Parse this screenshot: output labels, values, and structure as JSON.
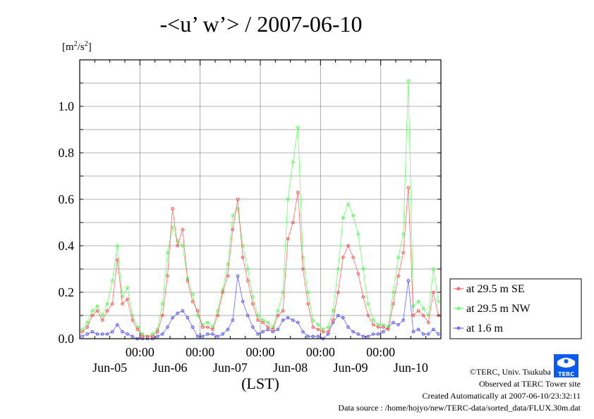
{
  "chart_data": {
    "type": "line",
    "title": "-<u’ w’> / 2007-06-10",
    "ylabel": "[m2/s2]",
    "ylabel_base": "[m",
    "ylabel_sup1": "2",
    "ylabel_mid": "/s",
    "ylabel_sup2": "2",
    "ylabel_end": "]",
    "xlabel": "(LST)",
    "ylim": [
      0,
      1.2
    ],
    "xlim_hours": [
      0,
      144
    ],
    "yticks": [
      "0.0",
      "0.2",
      "0.4",
      "0.6",
      "0.8",
      "1.0"
    ],
    "ytick_values": [
      0,
      0.2,
      0.4,
      0.6,
      0.8,
      1.0
    ],
    "xtick_labels": [
      "00:00",
      "00:00",
      "00:00",
      "00:00",
      "00:00"
    ],
    "xtick_hours": [
      24,
      48,
      72,
      96,
      120
    ],
    "day_labels": [
      "Jun-05",
      "Jun-06",
      "Jun-07",
      "Jun-08",
      "Jun-09",
      "Jun-10"
    ],
    "grid": true,
    "legend_position": "right",
    "x_hours": [
      1,
      3,
      5,
      7,
      9,
      11,
      13,
      15,
      17,
      19,
      21,
      23,
      25,
      27,
      29,
      31,
      33,
      35,
      37,
      39,
      41,
      43,
      45,
      47,
      49,
      51,
      53,
      55,
      57,
      59,
      61,
      63,
      65,
      67,
      69,
      71,
      73,
      75,
      77,
      79,
      81,
      83,
      85,
      87,
      89,
      91,
      93,
      95,
      97,
      99,
      101,
      103,
      105,
      107,
      109,
      111,
      113,
      115,
      117,
      119,
      121,
      123,
      125,
      127,
      129,
      131,
      133,
      135,
      137,
      139,
      141,
      143
    ],
    "series": [
      {
        "name": "at 29.5 m SE",
        "color": "#ff4040",
        "values": [
          0.03,
          0.05,
          0.1,
          0.12,
          0.08,
          0.12,
          0.15,
          0.34,
          0.15,
          0.17,
          0.08,
          0.04,
          0.01,
          0.01,
          0.01,
          0.03,
          0.1,
          0.27,
          0.56,
          0.4,
          0.47,
          0.25,
          0.16,
          0.12,
          0.05,
          0.05,
          0.04,
          0.1,
          0.2,
          0.27,
          0.47,
          0.6,
          0.35,
          0.25,
          0.15,
          0.08,
          0.07,
          0.05,
          0.04,
          0.1,
          0.12,
          0.43,
          0.5,
          0.63,
          0.3,
          0.15,
          0.05,
          0.04,
          0.03,
          0.03,
          0.08,
          0.2,
          0.35,
          0.4,
          0.35,
          0.28,
          0.18,
          0.1,
          0.06,
          0.05,
          0.05,
          0.04,
          0.15,
          0.27,
          0.37,
          0.65,
          0.1,
          0.12,
          0.1,
          0.07,
          0.2,
          0.1
        ]
      },
      {
        "name": "at 29.5 m NW",
        "color": "#40ff40",
        "values": [
          0.04,
          0.07,
          0.12,
          0.14,
          0.1,
          0.15,
          0.25,
          0.4,
          0.18,
          0.22,
          0.1,
          0.05,
          0.02,
          0.01,
          0.02,
          0.04,
          0.15,
          0.37,
          0.48,
          0.42,
          0.4,
          0.26,
          0.19,
          0.1,
          0.06,
          0.07,
          0.05,
          0.12,
          0.21,
          0.32,
          0.53,
          0.56,
          0.4,
          0.3,
          0.18,
          0.1,
          0.08,
          0.07,
          0.05,
          0.12,
          0.2,
          0.6,
          0.76,
          0.91,
          0.35,
          0.2,
          0.08,
          0.06,
          0.04,
          0.05,
          0.12,
          0.3,
          0.52,
          0.58,
          0.53,
          0.45,
          0.3,
          0.15,
          0.08,
          0.06,
          0.06,
          0.05,
          0.2,
          0.35,
          0.45,
          1.11,
          0.14,
          0.16,
          0.13,
          0.1,
          0.3,
          0.16
        ]
      },
      {
        "name": "at 1.6 m",
        "color": "#4040ff",
        "values": [
          0.01,
          0.02,
          0.03,
          0.02,
          0.02,
          0.02,
          0.03,
          0.06,
          0.03,
          0.02,
          0.01,
          0.0,
          0.0,
          0.0,
          0.0,
          0.01,
          0.02,
          0.05,
          0.09,
          0.11,
          0.12,
          0.09,
          0.05,
          0.01,
          0.01,
          0.02,
          0.02,
          0.01,
          0.02,
          0.04,
          0.08,
          0.27,
          0.16,
          0.1,
          0.05,
          0.02,
          0.03,
          0.04,
          0.03,
          0.04,
          0.08,
          0.09,
          0.08,
          0.07,
          0.03,
          0.01,
          0.01,
          0.01,
          0.0,
          0.02,
          0.07,
          0.1,
          0.09,
          0.05,
          0.03,
          0.02,
          0.01,
          0.01,
          0.02,
          0.02,
          0.03,
          0.05,
          0.07,
          0.06,
          0.08,
          0.25,
          0.03,
          0.04,
          0.02,
          0.02,
          0.04,
          0.02
        ]
      }
    ]
  },
  "footer": {
    "copyright": "©TERC, Univ. Tsukuba",
    "observed": "Observed at TERC Tower site",
    "created": "Created Automatically at 2007-06-10/23:32:11",
    "source": "Data source : /home/hojyo/new/TERC-data/sorted_data/FLUX.30m.dat",
    "logo_text": "TERC"
  }
}
